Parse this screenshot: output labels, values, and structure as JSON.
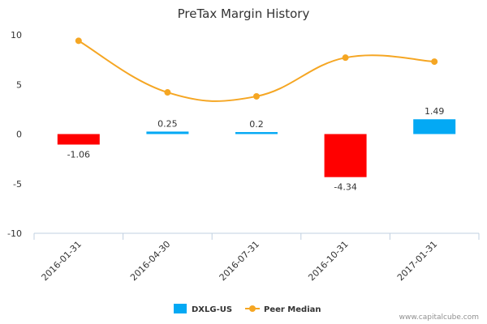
{
  "chart_data": {
    "type": "bar",
    "title": "PreTax Margin History",
    "xlabel": "",
    "ylabel": "",
    "ylim": [
      -10,
      10
    ],
    "yticks": [
      10,
      5,
      0,
      -5,
      -10
    ],
    "ytick_labels": [
      "10",
      "5",
      "0",
      "-5",
      "-10"
    ],
    "categories": [
      "2016-01-31",
      "2016-04-30",
      "2016-07-31",
      "2016-10-31",
      "2017-01-31"
    ],
    "series": [
      {
        "name": "DXLG-US",
        "kind": "bar",
        "values": [
          -1.06,
          0.25,
          0.2,
          -4.34,
          1.49
        ],
        "value_labels": [
          "-1.06",
          "0.25",
          "0.2",
          "-4.34",
          "1.49"
        ],
        "positive_color": "#03a9f4",
        "negative_color": "#ff0000"
      },
      {
        "name": "Peer Median",
        "kind": "line",
        "values": [
          9.4,
          4.2,
          3.8,
          7.7,
          7.3
        ],
        "color": "#f5a623"
      }
    ],
    "legend": {
      "placement": "bottom-center",
      "items": [
        {
          "label": "DXLG-US",
          "marker": "square",
          "color": "#03a9f4"
        },
        {
          "label": "Peer Median",
          "marker": "line-dot",
          "color": "#f5a623"
        }
      ]
    },
    "grid": false,
    "credit": "www.capitalcube.com"
  }
}
